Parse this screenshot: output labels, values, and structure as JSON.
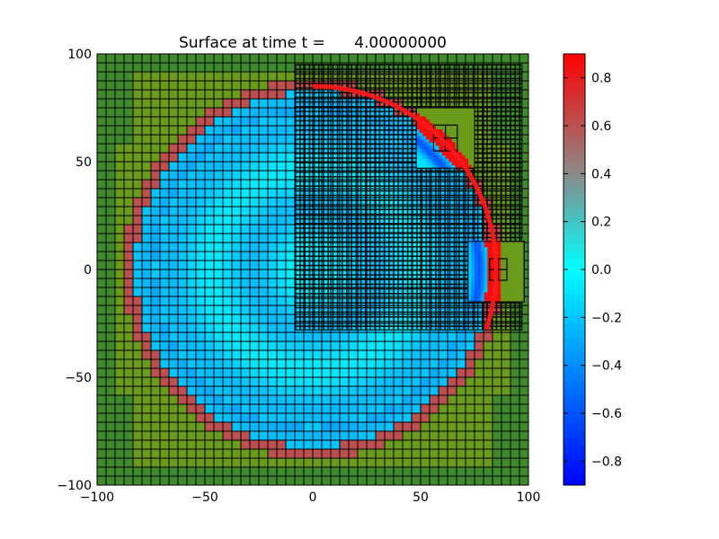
{
  "chart_data": {
    "type": "heatmap",
    "title": "Surface at time t =      4.00000000",
    "xlabel": "",
    "ylabel": "",
    "xlim": [
      -100,
      100
    ],
    "ylim": [
      -100,
      100
    ],
    "xticks": [
      "−100",
      "−50",
      "0",
      "50",
      "100"
    ],
    "yticks": [
      "−100",
      "−50",
      "0",
      "50",
      "100"
    ],
    "xtick_values": [
      -100,
      -50,
      0,
      50,
      100
    ],
    "ytick_values": [
      -100,
      -50,
      0,
      50,
      100
    ],
    "colorbar": {
      "vmin": -0.9,
      "vmax": 0.9,
      "ticks": [
        "−0.8",
        "−0.6",
        "−0.4",
        "−0.2",
        "0.0",
        "0.2",
        "0.4",
        "0.6",
        "0.8"
      ],
      "tick_values": [
        -0.8,
        -0.6,
        -0.4,
        -0.2,
        0.0,
        0.2,
        0.4,
        0.6,
        0.8
      ],
      "colormap": [
        "#0000ff",
        "#00ffff",
        "#ff0000"
      ]
    },
    "field": {
      "description_values": "radial wave surface",
      "ring_radius": 85,
      "ring_value": 0.85,
      "interior_value": -0.15,
      "exterior_land_color": "#6b9b1a",
      "corner_land_color": "#3f8a2e"
    },
    "amr_grids": [
      {
        "level": 1,
        "x": [
          -100,
          100
        ],
        "y": [
          -100,
          100
        ],
        "cells": 48
      },
      {
        "level": 2,
        "x": [
          -8,
          97
        ],
        "y": [
          -28,
          95
        ]
      },
      {
        "level": 3,
        "x": [
          48,
          75
        ],
        "y": [
          47,
          75
        ]
      },
      {
        "level": 3,
        "x": [
          72,
          98
        ],
        "y": [
          -15,
          13
        ]
      },
      {
        "level": 4,
        "x": [
          56,
          67
        ],
        "y": [
          55,
          67
        ]
      },
      {
        "level": 4,
        "x": [
          82,
          90
        ],
        "y": [
          -5,
          5
        ]
      }
    ]
  }
}
